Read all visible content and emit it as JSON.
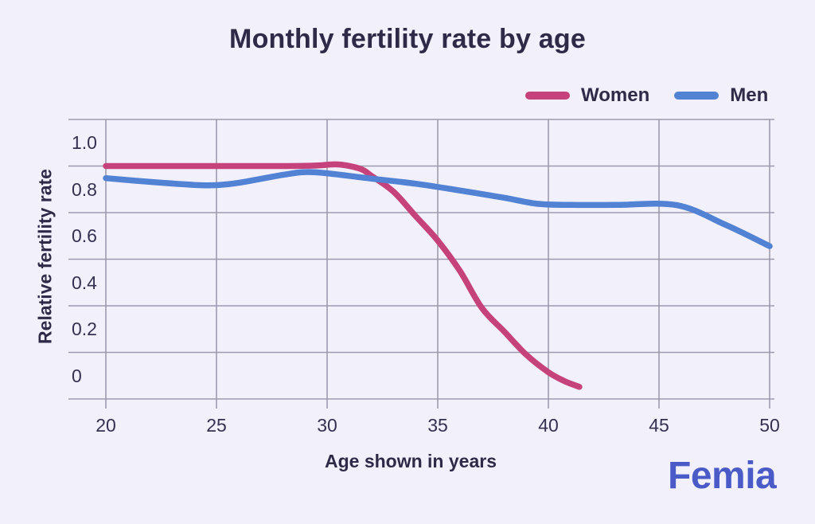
{
  "title": "Monthly fertility rate by age",
  "axes": {
    "y_title": "Relative fertility rate",
    "x_title": "Age shown in years",
    "y_tick_labels": [
      "1.0",
      "0.8",
      "0.6",
      "0.4",
      "0.2",
      "0"
    ],
    "x_tick_labels": [
      "20",
      "25",
      "30",
      "35",
      "40",
      "45",
      "50"
    ]
  },
  "branding": {
    "logo_text": "Femia",
    "logo_color": "#4a5bc7"
  },
  "colors": {
    "background": "#f2f1fb",
    "text": "#2e2a47",
    "tick_text": "#343050",
    "gridline": "#9d9aae",
    "women_line": "#c6427b",
    "men_line": "#5282d4"
  },
  "chart_data": {
    "type": "line",
    "title": "Monthly fertility rate by age",
    "xlabel": "Age shown in years",
    "ylabel": "Relative fertility rate",
    "x_ticks": [
      20,
      25,
      30,
      35,
      40,
      45,
      50
    ],
    "y_ticks": [
      1.0,
      0.8,
      0.6,
      0.4,
      0.2,
      0
    ],
    "xlim": [
      20,
      50
    ],
    "ylim": [
      -0.1,
      1.1
    ],
    "grid": true,
    "grid_step_y": 0.2,
    "legend_position": "top-right",
    "series": [
      {
        "name": "Women",
        "color": "#c6427b",
        "points": [
          [
            20,
            0.9
          ],
          [
            22,
            0.9
          ],
          [
            24,
            0.9
          ],
          [
            26,
            0.9
          ],
          [
            28,
            0.9
          ],
          [
            29.5,
            0.902
          ],
          [
            30.5,
            0.907
          ],
          [
            31.5,
            0.888
          ],
          [
            32,
            0.858
          ],
          [
            33,
            0.79
          ],
          [
            34,
            0.685
          ],
          [
            35,
            0.58
          ],
          [
            36,
            0.45
          ],
          [
            37,
            0.29
          ],
          [
            38,
            0.19
          ],
          [
            39,
            0.09
          ],
          [
            40,
            0.015
          ],
          [
            40.7,
            -0.022
          ],
          [
            41.4,
            -0.048
          ]
        ]
      },
      {
        "name": "Men",
        "color": "#5282d4",
        "points": [
          [
            20,
            0.848
          ],
          [
            22,
            0.832
          ],
          [
            24,
            0.819
          ],
          [
            25,
            0.818
          ],
          [
            26,
            0.828
          ],
          [
            28,
            0.862
          ],
          [
            29,
            0.874
          ],
          [
            30,
            0.869
          ],
          [
            32,
            0.846
          ],
          [
            34,
            0.824
          ],
          [
            36,
            0.795
          ],
          [
            38,
            0.764
          ],
          [
            39.5,
            0.738
          ],
          [
            41,
            0.733
          ],
          [
            43,
            0.733
          ],
          [
            45.8,
            0.732
          ],
          [
            48,
            0.648
          ],
          [
            50,
            0.556
          ]
        ]
      }
    ]
  }
}
